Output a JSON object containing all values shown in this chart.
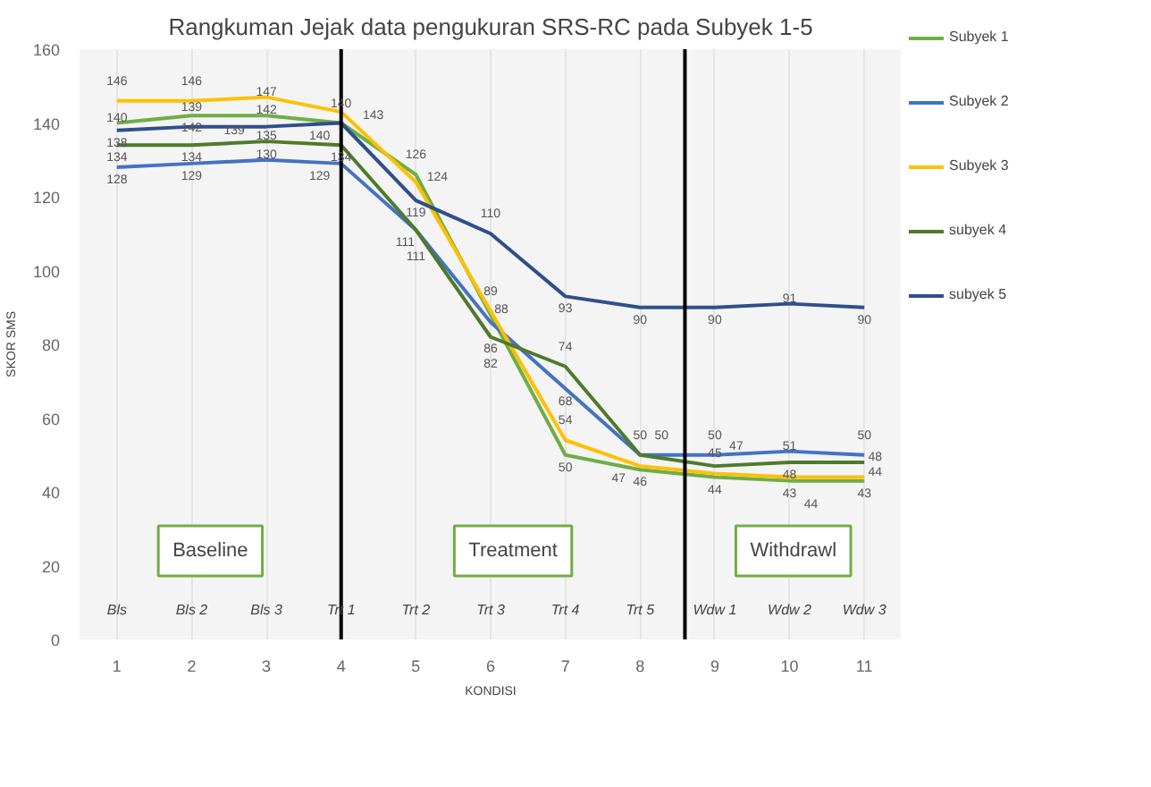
{
  "chart_data": {
    "type": "line",
    "title": "Rangkuman Jejak data pengukuran SRS-RC pada Subyek 1-5",
    "xlabel": "KONDISI",
    "ylabel": "SKOR SMS",
    "x": [
      1,
      2,
      3,
      4,
      5,
      6,
      7,
      8,
      9,
      10,
      11
    ],
    "series": [
      {
        "name": "Subyek 1",
        "color": "#70ad47",
        "values": [
          140,
          142,
          142,
          140,
          126,
          88,
          50,
          46,
          44,
          43,
          43
        ]
      },
      {
        "name": "Subyek 2",
        "color": "#4472c4",
        "values": [
          128,
          129,
          130,
          129,
          111,
          86,
          68,
          50,
          50,
          51,
          50
        ]
      },
      {
        "name": "Subyek 3",
        "color": "#ffc000",
        "values": [
          146,
          146,
          147,
          143,
          124,
          89,
          54,
          47,
          45,
          44,
          44
        ]
      },
      {
        "name": "subyek 4",
        "color": "#4e7a2c",
        "values": [
          134,
          134,
          135,
          134,
          111,
          82,
          74,
          50,
          47,
          48,
          48
        ]
      },
      {
        "name": "subyek 5",
        "color": "#2f4f8a",
        "values": [
          138,
          139,
          139,
          140,
          119,
          110,
          93,
          90,
          90,
          91,
          90
        ]
      }
    ],
    "xlim": [
      0.5,
      11.5
    ],
    "ylim": [
      0,
      160
    ],
    "xticks": [
      1,
      2,
      3,
      4,
      5,
      6,
      7,
      8,
      9,
      10,
      11
    ],
    "yticks": [
      0,
      20,
      40,
      60,
      80,
      100,
      120,
      140,
      160
    ],
    "ref_lines": [
      {
        "axis": "x",
        "value": 4,
        "color": "#000000"
      },
      {
        "axis": "x",
        "value": 8.6,
        "color": "#000000"
      }
    ],
    "annotations": [
      "Baseline",
      "Treatment",
      "Withdrawl",
      "Bls",
      "Bls 2",
      "Bls 3",
      "Trt 1",
      "Trt 2",
      "Trt 3",
      "Trt 4",
      "Trt 5",
      "Wdw 1",
      "Wdw 2",
      "Wdw 3"
    ],
    "data_labels": true,
    "grid": "x",
    "legend": "right",
    "marker": "none",
    "line_style": "solid"
  }
}
